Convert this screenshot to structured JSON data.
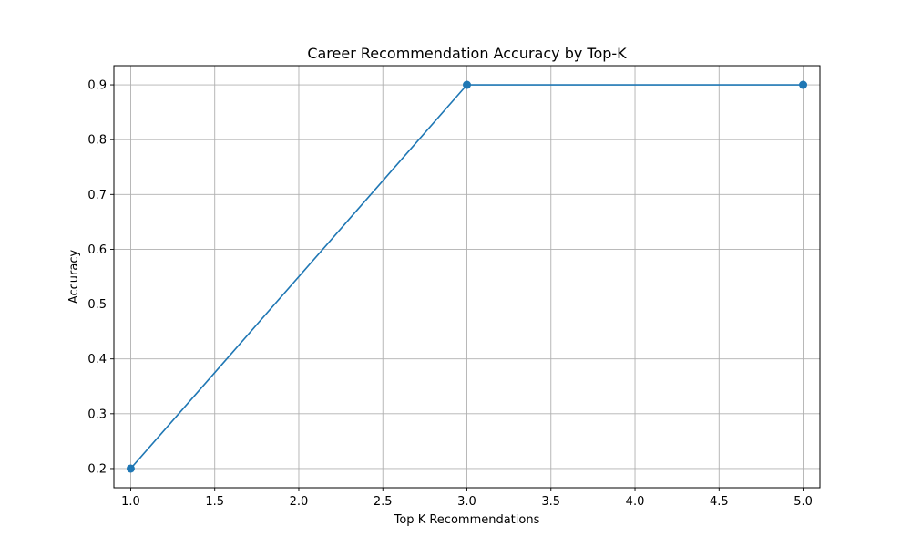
{
  "chart_data": {
    "type": "line",
    "title": "Career Recommendation Accuracy by Top-K",
    "xlabel": "Top K Recommendations",
    "ylabel": "Accuracy",
    "x": [
      1,
      3,
      5
    ],
    "series": [
      {
        "values": [
          0.2,
          0.9,
          0.9
        ],
        "color": "#1f77b4",
        "marker": "circle"
      }
    ],
    "xlim": [
      0.9,
      5.1
    ],
    "ylim": [
      0.165,
      0.935
    ],
    "xticks": [
      "1.0",
      "1.5",
      "2.0",
      "2.5",
      "3.0",
      "3.5",
      "4.0",
      "4.5",
      "5.0"
    ],
    "yticks": [
      "0.2",
      "0.3",
      "0.4",
      "0.5",
      "0.6",
      "0.7",
      "0.8",
      "0.9"
    ],
    "grid": true,
    "legend": "none"
  }
}
